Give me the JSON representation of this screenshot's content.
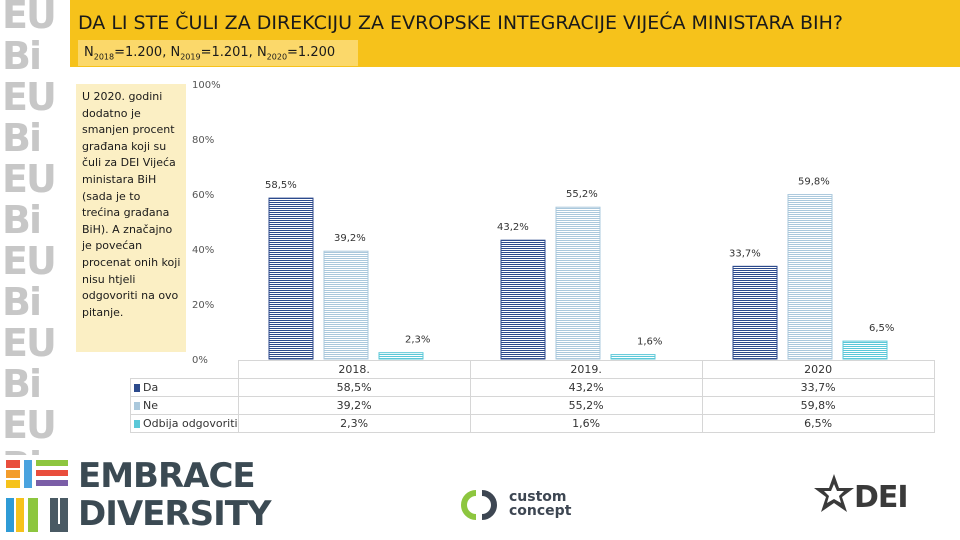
{
  "header": {
    "title": "DA LI STE ČULI ZA DIREKCIJU ZA EVROPSKE INTEGRACIJE VIJEĆA MINISTARA BIH?",
    "sample_sizes": [
      {
        "prefix": "N",
        "sub": "2018",
        "value": "=1.200"
      },
      {
        "prefix": "N",
        "sub": "2019",
        "value": "=1.201"
      },
      {
        "prefix": "N",
        "sub": "2020",
        "value": "=1.200"
      }
    ],
    "color": "#f6c21b",
    "sample_box_color": "#fbd86a"
  },
  "note": {
    "text": "U 2020. godini dodatno je smanjen procent građana koji su čuli za DEI Vijeća ministara BiH (sada je to trećina građana BiH). A značajno je povećan procenat onih koji nisu htjeli odgovoriti na ovo pitanje.",
    "background": "#fbefc4"
  },
  "chart_data": {
    "type": "bar",
    "categories": [
      "2018.",
      "2019.",
      "2020"
    ],
    "series": [
      {
        "name": "Da",
        "values": [
          58.5,
          43.2,
          33.7
        ],
        "labels": [
          "58,5%",
          "43,2%",
          "33,7%"
        ],
        "color": "#2c4a8c"
      },
      {
        "name": "Ne",
        "values": [
          39.2,
          55.2,
          59.8
        ],
        "labels": [
          "39,2%",
          "55,2%",
          "59,8%"
        ],
        "color": "#aac8dc"
      },
      {
        "name": "Odbija odgovoriti",
        "values": [
          2.3,
          1.6,
          6.5
        ],
        "labels": [
          "2,3%",
          "1,6%",
          "6,5%"
        ],
        "color": "#5bc8d8"
      }
    ],
    "yticks": [
      "0%",
      "20%",
      "40%",
      "60%",
      "80%",
      "100%"
    ],
    "ylim": [
      0,
      100
    ],
    "grid": false,
    "legend": "data-table-below"
  },
  "strip": {
    "glyphs": [
      "EU",
      "Bi",
      "EU",
      "Bi",
      "EU",
      "Bi",
      "EU",
      "Bi",
      "EU",
      "Bi",
      "EU",
      "Bi"
    ]
  },
  "logos": {
    "embrace": {
      "line1": "EMBRACE",
      "line2": "DIVERSITY",
      "mark1": "Bi",
      "mark2": "EU"
    },
    "custom": {
      "line1": "custom",
      "line2": "concept"
    },
    "dei": {
      "text": "DEI"
    }
  }
}
